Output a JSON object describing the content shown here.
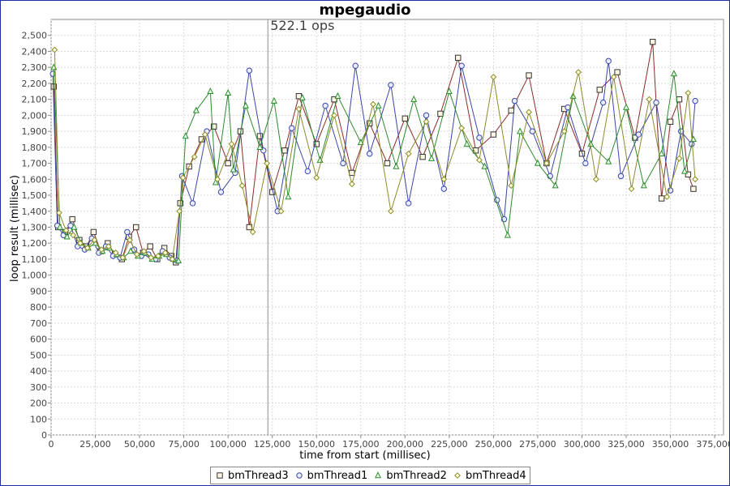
{
  "chart_data": {
    "type": "line",
    "title": "mpegaudio",
    "xlabel": "time from start (millisec)",
    "ylabel": "loop result (millisec)",
    "xlim": [
      0,
      380000
    ],
    "ylim": [
      0,
      2600
    ],
    "x_ticks": [
      "0",
      "25,000",
      "50,000",
      "75,000",
      "100,000",
      "125,000",
      "150,000",
      "175,000",
      "200,000",
      "225,000",
      "250,000",
      "275,000",
      "300,000",
      "325,000",
      "350,000",
      "375,000"
    ],
    "y_ticks": [
      "0",
      "100",
      "200",
      "300",
      "400",
      "500",
      "600",
      "700",
      "800",
      "900",
      "1,000",
      "1,100",
      "1,200",
      "1,300",
      "1,400",
      "1,500",
      "1,600",
      "1,700",
      "1,800",
      "1,900",
      "2,000",
      "2,100",
      "2,200",
      "2,300",
      "2,400",
      "2,500"
    ],
    "grid": true,
    "legend_position": "bottom",
    "vertical_marker": {
      "x": 122500,
      "label": "522.1 ops"
    },
    "series": [
      {
        "name": "bmThread3",
        "color": "#8b2b2b",
        "marker": "square",
        "x": [
          1500,
          4000,
          8000,
          12000,
          16000,
          20000,
          24000,
          28000,
          32000,
          36000,
          40000,
          44000,
          48000,
          52000,
          56000,
          60000,
          64000,
          68000,
          70500,
          73000,
          78000,
          85000,
          92000,
          100000,
          107000,
          112000,
          118000,
          125000,
          132000,
          140000,
          150000,
          160000,
          170000,
          180000,
          190000,
          200000,
          210000,
          220000,
          230000,
          240000,
          250000,
          260000,
          270000,
          280000,
          290000,
          300000,
          310000,
          320000,
          330000,
          340000,
          345000,
          350000,
          355000,
          360000,
          363000
        ],
        "y": [
          2180,
          1300,
          1270,
          1350,
          1220,
          1180,
          1270,
          1150,
          1200,
          1130,
          1100,
          1240,
          1300,
          1140,
          1180,
          1100,
          1170,
          1120,
          1080,
          1450,
          1680,
          1850,
          1930,
          1700,
          1900,
          1300,
          1870,
          1520,
          1780,
          2120,
          1820,
          2100,
          1640,
          1950,
          1700,
          1980,
          1740,
          2010,
          2360,
          1780,
          1880,
          2030,
          2250,
          1700,
          2040,
          1760,
          2160,
          2270,
          1860,
          2460,
          1480,
          1960,
          2100,
          1630,
          1540
        ]
      },
      {
        "name": "bmThread1",
        "color": "#3a46a8",
        "marker": "circle",
        "x": [
          1000,
          3500,
          7000,
          11000,
          15000,
          19000,
          23000,
          27000,
          31000,
          35000,
          39000,
          43000,
          47000,
          51000,
          55000,
          59000,
          63000,
          67000,
          71000,
          74000,
          80000,
          88000,
          96000,
          104000,
          112000,
          120000,
          128000,
          136000,
          145000,
          155000,
          165000,
          172000,
          180000,
          192000,
          202000,
          212000,
          222000,
          232000,
          242000,
          252000,
          256000,
          262000,
          272000,
          282000,
          292000,
          302000,
          312000,
          315000,
          322000,
          332000,
          342000,
          350000,
          356000,
          362000,
          364000
        ],
        "y": [
          2260,
          1310,
          1250,
          1310,
          1180,
          1160,
          1230,
          1140,
          1180,
          1120,
          1110,
          1270,
          1160,
          1120,
          1130,
          1100,
          1150,
          1110,
          1090,
          1620,
          1450,
          1900,
          1520,
          1640,
          2280,
          1780,
          1400,
          1920,
          1650,
          2060,
          1700,
          2310,
          1760,
          2190,
          1450,
          2000,
          1540,
          2310,
          1860,
          1470,
          1350,
          2090,
          1900,
          1620,
          2050,
          1700,
          2080,
          2340,
          1620,
          1880,
          2080,
          1530,
          1900,
          1820,
          2090
        ]
      },
      {
        "name": "bmThread2",
        "color": "#2e8b2e",
        "marker": "triangle",
        "x": [
          1500,
          5000,
          9000,
          13000,
          17000,
          21000,
          25000,
          29000,
          33000,
          37000,
          41000,
          45000,
          49000,
          53000,
          57000,
          61000,
          65000,
          69000,
          72000,
          76000,
          82000,
          90000,
          93000,
          100000,
          103000,
          110000,
          118000,
          126000,
          134000,
          142000,
          152000,
          162000,
          175000,
          185000,
          195000,
          205000,
          215000,
          225000,
          235000,
          245000,
          258000,
          265000,
          275000,
          285000,
          295000,
          305000,
          315000,
          325000,
          335000,
          345000,
          352000,
          358000,
          363000
        ],
        "y": [
          2300,
          1300,
          1240,
          1300,
          1200,
          1170,
          1200,
          1150,
          1170,
          1130,
          1110,
          1150,
          1120,
          1140,
          1100,
          1120,
          1130,
          1100,
          1090,
          1870,
          2030,
          2150,
          1580,
          2140,
          1660,
          2060,
          1800,
          2090,
          1490,
          2110,
          1720,
          2120,
          1830,
          2060,
          1680,
          2100,
          1730,
          2150,
          1820,
          1680,
          1250,
          1900,
          1700,
          1560,
          2120,
          1820,
          1710,
          2050,
          1560,
          1760,
          2260,
          1650,
          1850
        ]
      },
      {
        "name": "bmThread4",
        "color": "#8b8b2e",
        "marker": "diamond",
        "x": [
          2000,
          4500,
          8500,
          12500,
          16500,
          20500,
          24500,
          28500,
          32500,
          36500,
          40500,
          44500,
          48500,
          52500,
          56500,
          60500,
          64500,
          68500,
          72500,
          74500,
          81000,
          87000,
          94000,
          102000,
          108000,
          114000,
          122000,
          130000,
          140000,
          150000,
          160000,
          170000,
          182000,
          192000,
          202000,
          212000,
          222000,
          232000,
          242000,
          250000,
          260000,
          270000,
          280000,
          290000,
          298000,
          308000,
          318000,
          328000,
          338000,
          348000,
          355000,
          360000,
          364000
        ],
        "y": [
          2410,
          1390,
          1280,
          1250,
          1200,
          1170,
          1220,
          1160,
          1180,
          1140,
          1110,
          1220,
          1130,
          1150,
          1110,
          1120,
          1140,
          1100,
          1400,
          1610,
          1740,
          1880,
          1600,
          1820,
          1560,
          1270,
          1700,
          1400,
          2040,
          1610,
          2000,
          1570,
          2070,
          1400,
          1760,
          1960,
          1600,
          1920,
          1720,
          2240,
          1560,
          2020,
          1700,
          1900,
          2270,
          1600,
          2240,
          1540,
          2100,
          1490,
          1730,
          2140,
          1600
        ]
      }
    ]
  }
}
